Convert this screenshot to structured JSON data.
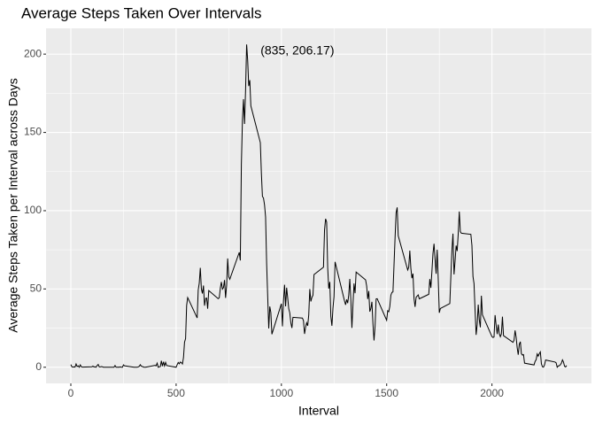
{
  "chart_data": {
    "type": "line",
    "title": "Average Steps Taken Over Intervals",
    "x_label": "Interval",
    "y_label": "Average Steps Taken per Interval across Days",
    "annotation": {
      "text": "(835, 206.17)",
      "x": 1076,
      "y": 202
    },
    "color": "#000000",
    "xlim": [
      -117.75,
      2472.75
    ],
    "ylim": [
      -10.31,
      216.48
    ],
    "xticks": [
      0,
      500,
      1000,
      1500,
      2000
    ],
    "yticks": [
      0,
      50,
      100,
      150,
      200
    ],
    "x_minor_grid": [
      250,
      750,
      1250,
      1750,
      2250
    ],
    "y_minor_grid": [
      25,
      75,
      125,
      175
    ],
    "grid": true,
    "x": [
      0,
      5,
      10,
      15,
      20,
      25,
      30,
      35,
      40,
      45,
      50,
      55,
      100,
      105,
      110,
      115,
      120,
      125,
      130,
      135,
      140,
      145,
      150,
      155,
      200,
      205,
      210,
      215,
      220,
      225,
      230,
      235,
      240,
      245,
      250,
      255,
      300,
      305,
      310,
      315,
      320,
      325,
      330,
      335,
      340,
      345,
      350,
      355,
      400,
      405,
      410,
      415,
      420,
      425,
      430,
      435,
      440,
      445,
      450,
      455,
      500,
      505,
      510,
      515,
      520,
      525,
      530,
      535,
      540,
      545,
      550,
      555,
      600,
      605,
      610,
      615,
      620,
      625,
      630,
      635,
      640,
      645,
      650,
      655,
      700,
      705,
      710,
      715,
      720,
      725,
      730,
      735,
      740,
      745,
      750,
      755,
      800,
      805,
      810,
      815,
      820,
      825,
      830,
      835,
      840,
      845,
      850,
      855,
      900,
      905,
      910,
      915,
      920,
      925,
      930,
      935,
      940,
      945,
      950,
      955,
      1000,
      1005,
      1010,
      1015,
      1020,
      1025,
      1030,
      1035,
      1040,
      1045,
      1050,
      1055,
      1100,
      1105,
      1110,
      1115,
      1120,
      1125,
      1130,
      1135,
      1140,
      1145,
      1150,
      1155,
      1200,
      1205,
      1210,
      1215,
      1220,
      1225,
      1230,
      1235,
      1240,
      1245,
      1250,
      1255,
      1300,
      1305,
      1310,
      1315,
      1320,
      1325,
      1330,
      1335,
      1340,
      1345,
      1350,
      1355,
      1400,
      1405,
      1410,
      1415,
      1420,
      1425,
      1430,
      1435,
      1440,
      1445,
      1450,
      1455,
      1500,
      1505,
      1510,
      1515,
      1520,
      1525,
      1530,
      1535,
      1540,
      1545,
      1550,
      1555,
      1600,
      1605,
      1610,
      1615,
      1620,
      1625,
      1630,
      1635,
      1640,
      1645,
      1650,
      1655,
      1700,
      1705,
      1710,
      1715,
      1720,
      1725,
      1730,
      1735,
      1740,
      1745,
      1750,
      1755,
      1800,
      1805,
      1810,
      1815,
      1820,
      1825,
      1830,
      1835,
      1840,
      1845,
      1850,
      1855,
      1900,
      1905,
      1910,
      1915,
      1920,
      1925,
      1930,
      1935,
      1940,
      1945,
      1950,
      1955,
      2000,
      2005,
      2010,
      2015,
      2020,
      2025,
      2030,
      2035,
      2040,
      2045,
      2050,
      2055,
      2100,
      2105,
      2110,
      2115,
      2120,
      2125,
      2130,
      2135,
      2140,
      2145,
      2150,
      2155,
      2200,
      2205,
      2210,
      2215,
      2220,
      2225,
      2230,
      2235,
      2240,
      2245,
      2250,
      2255,
      2300,
      2305,
      2310,
      2315,
      2320,
      2325,
      2330,
      2335,
      2340,
      2345,
      2350,
      2355
    ],
    "values": [
      1.7,
      0.3,
      0.1,
      0.2,
      0.1,
      2.1,
      0.5,
      0.9,
      0,
      1.5,
      0.3,
      0.1,
      0.3,
      0.7,
      0.2,
      0.3,
      0,
      1.1,
      1.8,
      0.2,
      0.2,
      0.4,
      0.3,
      0,
      0,
      0,
      1.1,
      0,
      0,
      0.1,
      0,
      0.2,
      0,
      0,
      1.5,
      0.9,
      0,
      0,
      0,
      0,
      0.2,
      0.6,
      1.6,
      0.6,
      0.5,
      0.1,
      0,
      0,
      1.2,
      0.9,
      2.6,
      0,
      0.3,
      0.4,
      4.1,
      0.7,
      3.5,
      0.8,
      3.1,
      1.1,
      0,
      1.6,
      3,
      2.2,
      3.3,
      3,
      2.1,
      6.1,
      16,
      18.3,
      39.5,
      44.5,
      31.5,
      49.3,
      53.8,
      63.5,
      50,
      47.1,
      52.2,
      39.3,
      44,
      44.2,
      37.4,
      49,
      43.8,
      44.4,
      50.5,
      54.5,
      49.9,
      50.9,
      55.7,
      44.3,
      52.3,
      69.5,
      57.8,
      56.2,
      73.4,
      68.2,
      129.4,
      157.5,
      171.2,
      155.4,
      177.3,
      206.17,
      195.9,
      179.6,
      183.4,
      167,
      143.5,
      124,
      109.1,
      108.1,
      103.7,
      96,
      66.2,
      45.2,
      24.8,
      38.8,
      35,
      21.1,
      40.6,
      26.1,
      42.4,
      52.7,
      38.9,
      50.8,
      44.3,
      37.4,
      34.7,
      28.3,
      25.1,
      31.9,
      31.4,
      29.7,
      21.3,
      25.5,
      28.4,
      26.5,
      33.4,
      49.98,
      42,
      44.6,
      46,
      59.2,
      63.9,
      87.7,
      94.8,
      92.8,
      63.4,
      50.2,
      54.5,
      32.4,
      26.5,
      37.7,
      45.1,
      67.3,
      42.3,
      39.9,
      43.3,
      40.98,
      46.2,
      56.4,
      42.8,
      25.1,
      39.97,
      53.5,
      47.3,
      60.8,
      55.8,
      51.96,
      43.6,
      48.7,
      35.5,
      37.5,
      41.8,
      27.5,
      17.1,
      26.1,
      43.6,
      43.8,
      30,
      36.1,
      35.5,
      38.8,
      45.96,
      47.8,
      48.1,
      65.3,
      82.9,
      98.7,
      102.1,
      83.96,
      62.1,
      64.1,
      74.5,
      63.2,
      56.9,
      59.8,
      43.9,
      38.6,
      44.7,
      45.5,
      46.2,
      43.7,
      46.6,
      56.3,
      50.7,
      61.2,
      72.7,
      78.9,
      68.9,
      59.7,
      75.1,
      56.5,
      34.8,
      37.5,
      40.7,
      58,
      74.7,
      85.3,
      59.3,
      67.8,
      77.7,
      74.2,
      85.3,
      99.5,
      86.6,
      85.6,
      84.9,
      77.8,
      58,
      53.4,
      36.3,
      20.7,
      27.4,
      40,
      30.2,
      25.5,
      45.7,
      33.5,
      19.6,
      19,
      19.3,
      33.3,
      26.8,
      21.2,
      27.3,
      21.3,
      19.5,
      21.3,
      32.3,
      20.2,
      15.9,
      17.2,
      23.5,
      19.2,
      12.5,
      8,
      14.7,
      16.3,
      8.7,
      7.8,
      8.1,
      2.6,
      1.5,
      3.7,
      4.8,
      8.5,
      7.1,
      8.7,
      9.8,
      2.2,
      0.3,
      0.1,
      1.6,
      4.6,
      3.3,
      2.8,
      0,
      0.8,
      1,
      1.6,
      2.6,
      4.7,
      3.3,
      0.6,
      0.2,
      1.1
    ]
  }
}
